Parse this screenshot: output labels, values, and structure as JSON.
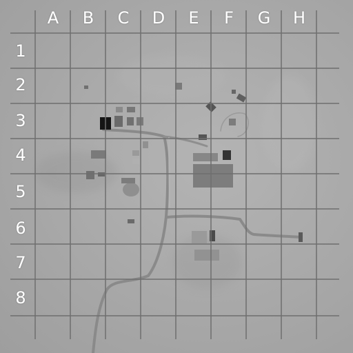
{
  "map": {
    "columns": [
      "A",
      "B",
      "C",
      "D",
      "E",
      "F",
      "G",
      "H"
    ],
    "rows": [
      "1",
      "2",
      "3",
      "4",
      "5",
      "6",
      "7",
      "8"
    ],
    "colors": {
      "terrain": "#a9a9a9",
      "grid_line": "#6e6e6e",
      "road": "#8a8a8a",
      "structure": "#5a5a5a",
      "dark_structure": "#151515",
      "label": "#ffffff"
    },
    "features": [
      {
        "type": "road",
        "name": "main-road"
      },
      {
        "type": "road",
        "name": "east-road"
      },
      {
        "type": "structure-cluster",
        "name": "compound-c3"
      },
      {
        "type": "structure-cluster",
        "name": "compound-e4-e5"
      },
      {
        "type": "structure-cluster",
        "name": "compound-f2"
      },
      {
        "type": "structure-cluster",
        "name": "compound-e6-e7"
      }
    ]
  }
}
